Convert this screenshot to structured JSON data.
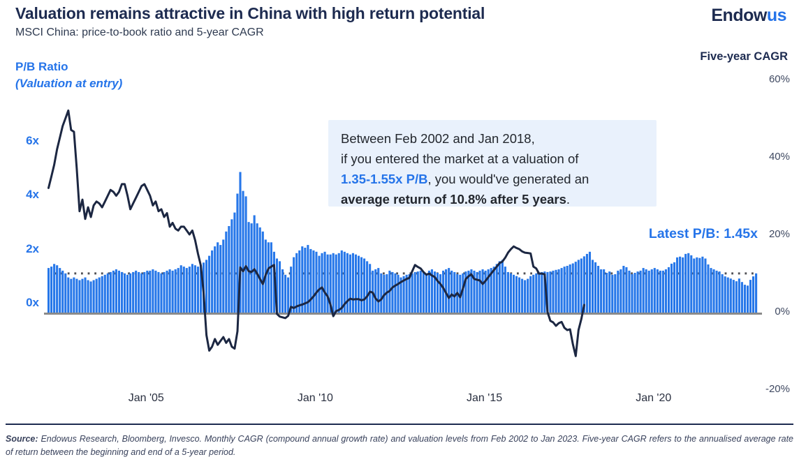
{
  "header": {
    "title": "Valuation remains attractive in China with high return potential",
    "subtitle": "MSCI China: price-to-book ratio and 5-year CAGR",
    "logo_part1": "Endow",
    "logo_part2": "us"
  },
  "axes": {
    "left": {
      "label_line1": "P/B Ratio",
      "label_line2": "(Valuation at entry)",
      "tick_values": [
        6,
        4,
        2,
        0
      ],
      "tick_labels": [
        "6x",
        "4x",
        "2x",
        "0x"
      ]
    },
    "right": {
      "label": "Five-year CAGR",
      "tick_values": [
        60,
        40,
        20,
        0,
        -20
      ],
      "tick_labels": [
        "60%",
        "40%",
        "20%",
        "0%",
        "-20%"
      ]
    },
    "x": {
      "tick_month_indices": [
        35,
        95,
        155,
        215
      ],
      "tick_labels": [
        "Jan '05",
        "Jan '10",
        "Jan '15",
        "Jan '20"
      ]
    }
  },
  "annotation": {
    "line1": "Between Feb 2002 and Jan 2018,",
    "line2": "if you entered the market at a valuation of",
    "line3_highlight": "1.35-1.55x P/B",
    "line3_rest": ", you would've generated an",
    "line4_bold": "average return of 10.8% after 5 years",
    "line4_end": "."
  },
  "latest_pb_label": "Latest P/B: 1.45x",
  "footer": {
    "source_label": "Source:",
    "text": " Endowus Research, Bloomberg, Invesco. Monthly CAGR (compound annual growth rate) and valuation levels from Feb 2002 to Jan 2023. Five-year CAGR refers to the annualised average rate of return between the beginning and end of a 5-year period."
  },
  "colors": {
    "bar_blue": "#2677e9",
    "accent_blue": "#2574e9",
    "line_navy": "#1c2742",
    "dotted_gray": "#515156",
    "axis_gray": "#8a8a8a",
    "navy_text": "#1d2b50",
    "annotation_bg": "#e9f1fc"
  },
  "chart_data": {
    "type": "combo",
    "title": "MSCI China: price-to-book ratio and 5-year CAGR",
    "x_start": "2002-02",
    "x_end_bars": "2023-01",
    "x_end_line": "2018-01",
    "x_frequency": "monthly",
    "reference_line": {
      "axis": "left",
      "value": 1.45,
      "style": "dotted",
      "meaning": "Latest P/B"
    },
    "left_axis": {
      "unit": "x (price-to-book)",
      "ticks": [
        0,
        2,
        4,
        6
      ]
    },
    "right_axis": {
      "unit": "% (five-year CAGR)",
      "ticks": [
        -20,
        0,
        20,
        40,
        60
      ]
    },
    "series": [
      {
        "name": "P/B ratio (valuation at entry)",
        "type": "bar",
        "axis": "left",
        "values": [
          1.65,
          1.7,
          1.8,
          1.75,
          1.65,
          1.55,
          1.45,
          1.3,
          1.25,
          1.3,
          1.25,
          1.2,
          1.25,
          1.3,
          1.2,
          1.15,
          1.2,
          1.25,
          1.3,
          1.35,
          1.4,
          1.45,
          1.5,
          1.55,
          1.6,
          1.55,
          1.5,
          1.45,
          1.4,
          1.45,
          1.5,
          1.55,
          1.5,
          1.45,
          1.5,
          1.55,
          1.55,
          1.6,
          1.55,
          1.5,
          1.45,
          1.5,
          1.55,
          1.6,
          1.55,
          1.6,
          1.65,
          1.75,
          1.7,
          1.65,
          1.7,
          1.8,
          1.75,
          1.7,
          1.75,
          1.85,
          1.95,
          2.1,
          2.3,
          2.45,
          2.6,
          2.5,
          2.7,
          3.0,
          3.2,
          3.45,
          3.7,
          4.4,
          5.2,
          4.5,
          4.3,
          3.35,
          3.3,
          3.6,
          3.3,
          3.15,
          3.0,
          2.7,
          2.6,
          2.6,
          2.25,
          2.0,
          1.9,
          1.6,
          1.4,
          1.3,
          1.7,
          2.05,
          2.2,
          2.3,
          2.45,
          2.4,
          2.5,
          2.35,
          2.3,
          2.25,
          2.1,
          2.2,
          2.25,
          2.15,
          2.15,
          2.2,
          2.15,
          2.2,
          2.3,
          2.25,
          2.2,
          2.15,
          2.2,
          2.15,
          2.1,
          2.05,
          2.0,
          1.9,
          1.8,
          1.55,
          1.6,
          1.65,
          1.45,
          1.4,
          1.42,
          1.55,
          1.5,
          1.45,
          1.4,
          1.3,
          1.35,
          1.4,
          1.42,
          1.45,
          1.5,
          1.52,
          1.55,
          1.5,
          1.45,
          1.55,
          1.6,
          1.52,
          1.47,
          1.42,
          1.55,
          1.6,
          1.65,
          1.55,
          1.5,
          1.42,
          1.4,
          1.45,
          1.52,
          1.55,
          1.6,
          1.55,
          1.5,
          1.55,
          1.6,
          1.55,
          1.6,
          1.65,
          1.7,
          1.8,
          1.9,
          1.95,
          1.7,
          1.5,
          1.45,
          1.4,
          1.35,
          1.3,
          1.25,
          1.2,
          1.25,
          1.35,
          1.4,
          1.45,
          1.48,
          1.5,
          1.52,
          1.5,
          1.52,
          1.55,
          1.58,
          1.6,
          1.65,
          1.7,
          1.73,
          1.78,
          1.82,
          1.88,
          1.95,
          2.0,
          2.08,
          2.17,
          2.25,
          1.95,
          1.86,
          1.73,
          1.6,
          1.6,
          1.47,
          1.52,
          1.4,
          1.42,
          1.55,
          1.6,
          1.73,
          1.68,
          1.55,
          1.42,
          1.47,
          1.52,
          1.55,
          1.65,
          1.6,
          1.55,
          1.6,
          1.65,
          1.6,
          1.55,
          1.55,
          1.6,
          1.68,
          1.81,
          1.86,
          2.04,
          2.07,
          2.04,
          2.17,
          2.2,
          2.12,
          2.0,
          2.04,
          2.02,
          2.07,
          2.0,
          1.78,
          1.65,
          1.6,
          1.55,
          1.52,
          1.42,
          1.34,
          1.3,
          1.26,
          1.21,
          1.16,
          1.26,
          1.13,
          1.03,
          1.0,
          1.21,
          1.34,
          1.45
        ]
      },
      {
        "name": "Five-year CAGR (%)",
        "type": "line",
        "axis": "right",
        "values": [
          32,
          35,
          38,
          42,
          45,
          48,
          50,
          52,
          47,
          46.5,
          37,
          26,
          29,
          24,
          27,
          24.5,
          27.5,
          28.5,
          28,
          27,
          28.5,
          30,
          31.5,
          31,
          30,
          31,
          33,
          33,
          30,
          26.5,
          28,
          29.5,
          31,
          32.5,
          33,
          31.5,
          30,
          27.5,
          28.5,
          26,
          26.5,
          24.5,
          25.5,
          22,
          23,
          21.5,
          21,
          22,
          22,
          21,
          20,
          21,
          18.5,
          15,
          12,
          5,
          -6,
          -10,
          -9,
          -7,
          -8.5,
          -7.5,
          -6.5,
          -8,
          -7,
          -9,
          -9.5,
          -5,
          11.5,
          10.5,
          11.8,
          10.5,
          10.3,
          11,
          9.9,
          8.5,
          7.2,
          9.5,
          11.2,
          11.7,
          12.1,
          -0.5,
          -1.2,
          -1.4,
          -1.6,
          -1,
          1.3,
          1,
          1.4,
          1.7,
          1.9,
          2.2,
          2.5,
          3.2,
          4,
          5,
          5.8,
          6.3,
          5,
          4,
          1.9,
          -1.1,
          0.2,
          0.5,
          1,
          2,
          2.8,
          3.4,
          3.2,
          3.3,
          3.3,
          3,
          3.2,
          4,
          5.2,
          5,
          3.5,
          2.7,
          3.2,
          4.3,
          5,
          5.4,
          6.3,
          6.8,
          7.2,
          7.7,
          8.1,
          8.5,
          8.8,
          10.5,
          12.1,
          11.6,
          11.2,
          10.3,
          9.6,
          9.9,
          9.4,
          9,
          8,
          7.2,
          6.2,
          4.9,
          3.6,
          4.5,
          4,
          4.9,
          3.8,
          6,
          8.5,
          9.2,
          9.7,
          8.5,
          8.3,
          8.1,
          7.2,
          8,
          9,
          9.9,
          10.8,
          11.7,
          12.6,
          13,
          14,
          15.3,
          16.2,
          16.9,
          16.5,
          16.2,
          15.6,
          15.3,
          15.2,
          15.1,
          11.7,
          11.2,
          9.9,
          9.9,
          9.7,
          0,
          -2.3,
          -2.7,
          -3.6,
          -2.9,
          -2.6,
          -4.1,
          -4.7,
          -4.5,
          -8.3,
          -11.4,
          -4.7,
          -1.8,
          1.8
        ]
      }
    ]
  }
}
